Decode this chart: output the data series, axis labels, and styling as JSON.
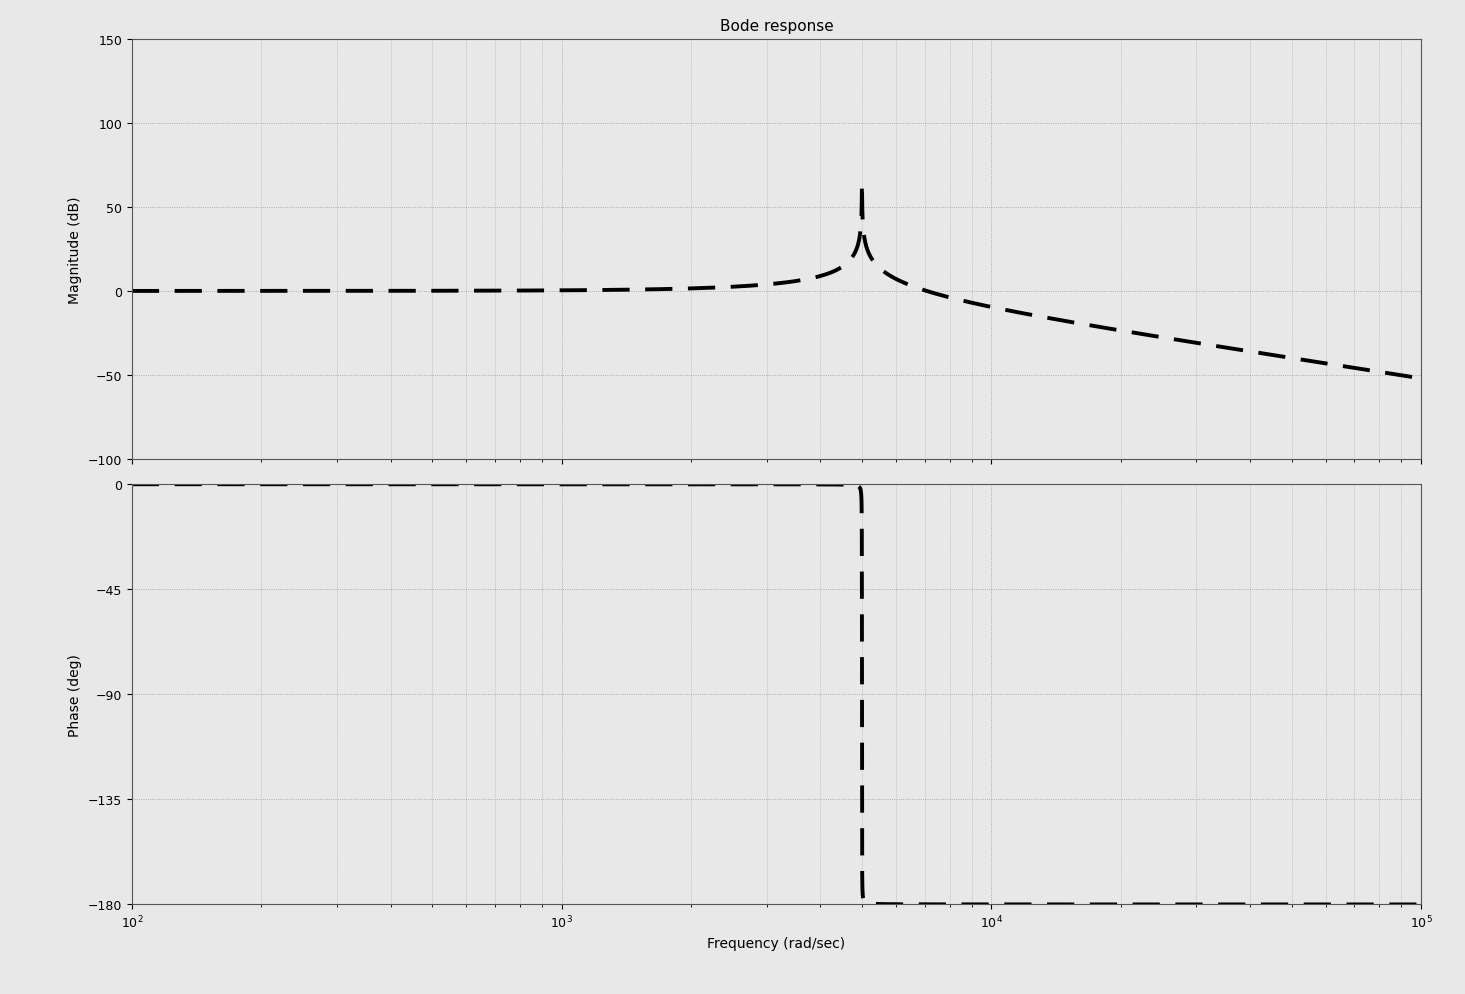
{
  "title": "Bode response",
  "xlabel": "Frequency (rad/sec)",
  "ylabel_mag": "Magnitude (dB)",
  "ylabel_phase": "Phase (deg)",
  "freq_range": [
    100.0,
    100000.0
  ],
  "mag_ylim": [
    -100,
    150
  ],
  "phase_ylim": [
    -180,
    0
  ],
  "mag_yticks": [
    -100,
    -50,
    0,
    50,
    100,
    150
  ],
  "phase_yticks": [
    0,
    -45,
    -90,
    -135,
    -180
  ],
  "natural_freq": 5000,
  "damping": 0.0003,
  "line_color": "#000000",
  "line_width": 2.8,
  "dash_seq": [
    7,
    4
  ],
  "background_color": "#e8e8e8",
  "grid_color": "#999999",
  "grid_linestyle": ":",
  "grid_linewidth": 0.6,
  "title_fontsize": 11,
  "label_fontsize": 10,
  "tick_fontsize": 9,
  "fig_width": 14.65,
  "fig_height": 9.95,
  "dpi": 100
}
